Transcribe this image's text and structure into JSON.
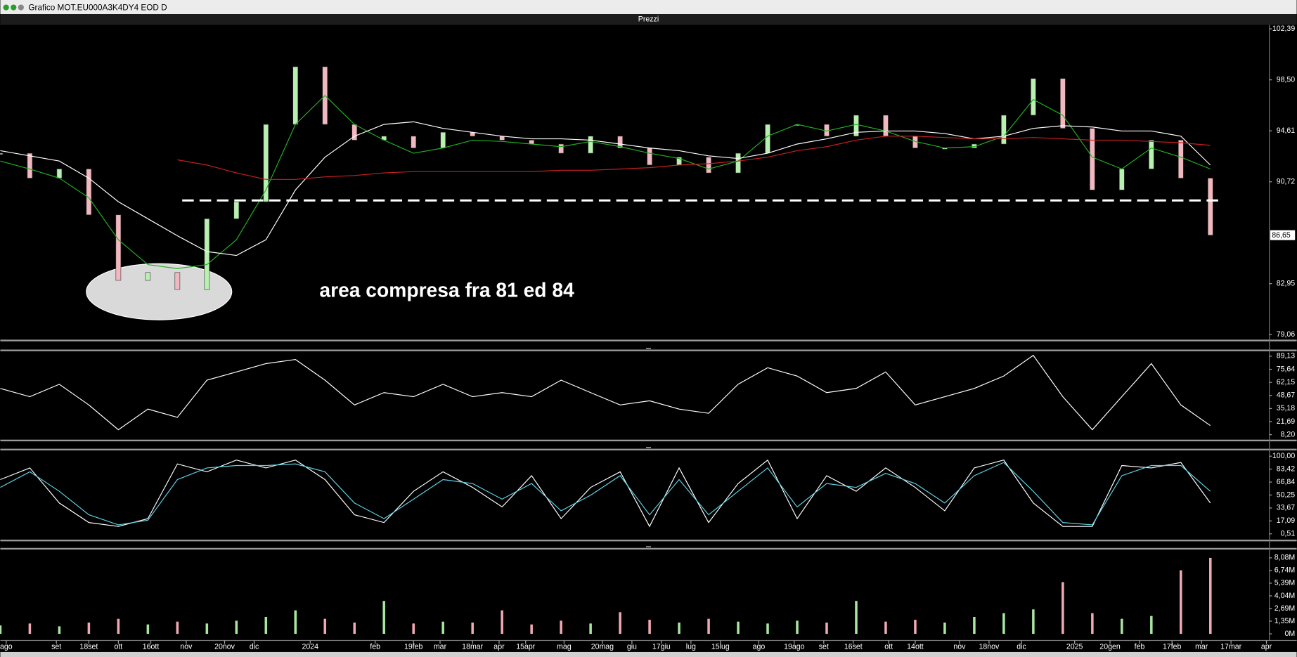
{
  "window": {
    "title": "Grafico MOT.EU000A3K4DY4 EOD D",
    "panel_label": "Prezzi"
  },
  "chart_data": [
    {
      "type": "candlestick",
      "xlim": [
        0,
        43
      ],
      "ylim": [
        78.74,
        102.7
      ],
      "yticks": [
        {
          "value": 102.39,
          "label": "102,39"
        },
        {
          "value": 98.5,
          "label": "98,50"
        },
        {
          "value": 94.61,
          "label": "94,61"
        },
        {
          "value": 90.72,
          "label": "90,72"
        },
        {
          "value": 82.95,
          "label": "82,95"
        },
        {
          "value": 79.06,
          "label": "79,06"
        }
      ],
      "values": [
        92.9,
        91.0,
        91.7,
        88.2,
        83.2,
        83.8,
        82.5,
        87.9,
        89.2,
        95.1,
        99.5,
        95.1,
        93.9,
        94.2,
        93.3,
        94.5,
        94.2,
        93.9,
        93.6,
        92.9,
        94.2,
        93.3,
        92.0,
        92.6,
        91.4,
        92.9,
        95.1,
        95.1,
        94.2,
        95.8,
        94.2,
        93.3,
        93.3,
        93.6,
        95.8,
        98.6,
        94.8,
        90.1,
        91.7,
        93.9,
        91.0,
        86.65
      ],
      "up_color": "#b8f0b0",
      "down_color": "#f2b8c0",
      "moving_averages": [
        {
          "color": "#22b022",
          "values": [
            92.3,
            91.7,
            91.0,
            89.5,
            86.3,
            84.4,
            84.1,
            84.4,
            86.3,
            90.1,
            95.1,
            97.3,
            95.1,
            93.9,
            92.9,
            93.3,
            93.9,
            93.8,
            93.6,
            93.4,
            93.8,
            93.4,
            92.9,
            92.5,
            91.7,
            92.3,
            94.2,
            95.1,
            94.6,
            95.1,
            94.6,
            93.8,
            93.3,
            93.4,
            94.2,
            97.0,
            95.8,
            92.6,
            91.7,
            93.3,
            92.6,
            91.7
          ]
        },
        {
          "color": "#ffffff",
          "values": [
            93.1,
            92.7,
            92.3,
            91.0,
            89.2,
            87.9,
            86.6,
            85.4,
            85.1,
            86.3,
            90.1,
            92.6,
            94.2,
            95.1,
            95.3,
            94.8,
            94.5,
            94.2,
            94.0,
            94.0,
            93.9,
            93.6,
            93.3,
            93.1,
            92.7,
            92.5,
            92.9,
            93.6,
            94.0,
            94.5,
            94.6,
            94.6,
            94.4,
            94.0,
            94.2,
            94.8,
            95.0,
            94.9,
            94.6,
            94.6,
            94.2,
            92.0
          ]
        },
        {
          "color": "#c82020",
          "values": [
            null,
            null,
            null,
            null,
            null,
            null,
            92.4,
            92.0,
            91.4,
            90.9,
            90.9,
            91.1,
            91.2,
            91.4,
            91.5,
            91.5,
            91.5,
            91.5,
            91.5,
            91.6,
            91.6,
            91.7,
            91.8,
            92.0,
            92.1,
            92.3,
            92.6,
            93.1,
            93.4,
            93.9,
            94.2,
            94.2,
            94.1,
            94.0,
            94.0,
            94.1,
            94.0,
            93.9,
            93.9,
            93.8,
            93.7,
            93.5
          ]
        }
      ],
      "reference_line": 89.3,
      "annotation": "area compresa fra 81 ed 84",
      "last_price": {
        "value": 86.65,
        "label": "86,65"
      }
    },
    {
      "type": "line",
      "xlim": [
        0,
        43
      ],
      "ylim": [
        3.94,
        94.24
      ],
      "yticks": [
        {
          "value": 89.13,
          "label": "89,13"
        },
        {
          "value": 75.64,
          "label": "75,64"
        },
        {
          "value": 62.15,
          "label": "62,15"
        },
        {
          "value": 48.67,
          "label": "48,67"
        },
        {
          "value": 35.18,
          "label": "35,18"
        },
        {
          "value": 21.69,
          "label": "21,69"
        },
        {
          "value": 8.2,
          "label": "8,20"
        }
      ],
      "series": [
        {
          "color": "#ffffff",
          "values": [
            55.9,
            47.4,
            60.2,
            38.9,
            13.3,
            34.6,
            26.1,
            64.4,
            72.9,
            81.5,
            85.7,
            64.4,
            38.9,
            51.6,
            47.4,
            60.2,
            47.4,
            51.6,
            47.4,
            64.4,
            51.6,
            38.9,
            43.1,
            34.6,
            30.3,
            60.2,
            77.2,
            68.7,
            51.6,
            55.9,
            72.9,
            38.9,
            47.4,
            55.9,
            68.7,
            90.0,
            47.4,
            13.3,
            47.4,
            81.5,
            38.9,
            17.6
          ]
        }
      ]
    },
    {
      "type": "line",
      "xlim": [
        0,
        43
      ],
      "ylim": [
        -5.84,
        107.4
      ],
      "yticks": [
        {
          "value": 100,
          "label": "100,00"
        },
        {
          "value": 83.42,
          "label": "83,42"
        },
        {
          "value": 66.84,
          "label": "66,84"
        },
        {
          "value": 50.25,
          "label": "50,25"
        },
        {
          "value": 33.67,
          "label": "33,67"
        },
        {
          "value": 17.09,
          "label": "17,09"
        },
        {
          "value": 0.51,
          "label": "0,51"
        }
      ],
      "series": [
        {
          "color": "#ffffff",
          "values": [
            70,
            85,
            40,
            15,
            10,
            20,
            90,
            80,
            95,
            85,
            95,
            70,
            25,
            15,
            55,
            80,
            60,
            35,
            75,
            20,
            60,
            80,
            10,
            85,
            15,
            65,
            95,
            20,
            75,
            55,
            85,
            60,
            30,
            85,
            95,
            40,
            10,
            10,
            88,
            85,
            92,
            40
          ]
        },
        {
          "color": "#5fd3e6",
          "values": [
            60,
            80,
            55,
            25,
            12,
            18,
            70,
            85,
            88,
            88,
            90,
            80,
            40,
            20,
            45,
            70,
            65,
            45,
            65,
            30,
            50,
            75,
            25,
            70,
            25,
            55,
            85,
            35,
            65,
            60,
            78,
            65,
            40,
            75,
            92,
            55,
            15,
            12,
            75,
            88,
            88,
            55
          ]
        }
      ]
    },
    {
      "type": "bar",
      "xlim": [
        0,
        43
      ],
      "ylim": [
        -0.44,
        8.96
      ],
      "yticks": [
        {
          "value": 8.08,
          "label": "8,08M"
        },
        {
          "value": 6.74,
          "label": "6,74M"
        },
        {
          "value": 5.39,
          "label": "5,39M"
        },
        {
          "value": 4.04,
          "label": "4,04M"
        },
        {
          "value": 2.69,
          "label": "2,69M"
        },
        {
          "value": 1.35,
          "label": "1,35M"
        },
        {
          "value": 0,
          "label": "0M"
        }
      ],
      "values": [
        0.9,
        1.1,
        0.8,
        1.2,
        1.6,
        1.0,
        1.3,
        1.1,
        1.4,
        1.8,
        2.5,
        1.6,
        1.2,
        3.5,
        1.1,
        1.3,
        1.2,
        2.5,
        1.0,
        1.4,
        1.1,
        2.3,
        1.5,
        1.2,
        1.6,
        1.3,
        1.1,
        1.4,
        1.2,
        3.5,
        1.3,
        1.5,
        1.2,
        1.8,
        2.2,
        2.6,
        5.5,
        2.2,
        1.6,
        1.9,
        6.76,
        8.08
      ],
      "up_color": "#a8e6a0",
      "down_color": "#f0a8b4",
      "xticks": [
        {
          "value": 0.2,
          "label": "ago"
        },
        {
          "value": 1.9,
          "label": "set"
        },
        {
          "value": 3.0,
          "label": "18set"
        },
        {
          "value": 4.0,
          "label": "ott"
        },
        {
          "value": 5.1,
          "label": "16ott"
        },
        {
          "value": 6.3,
          "label": "nov"
        },
        {
          "value": 7.6,
          "label": "20nov"
        },
        {
          "value": 8.6,
          "label": "dic"
        },
        {
          "value": 10.5,
          "label": "2024"
        },
        {
          "value": 12.7,
          "label": "feb"
        },
        {
          "value": 14.0,
          "label": "19feb"
        },
        {
          "value": 14.9,
          "label": "mar"
        },
        {
          "value": 16.0,
          "label": "18mar"
        },
        {
          "value": 16.9,
          "label": "apr"
        },
        {
          "value": 17.8,
          "label": "15apr"
        },
        {
          "value": 19.1,
          "label": "mag"
        },
        {
          "value": 20.4,
          "label": "20mag"
        },
        {
          "value": 21.4,
          "label": "giu"
        },
        {
          "value": 22.4,
          "label": "17giu"
        },
        {
          "value": 23.4,
          "label": "lug"
        },
        {
          "value": 24.4,
          "label": "15lug"
        },
        {
          "value": 25.7,
          "label": "ago"
        },
        {
          "value": 26.9,
          "label": "19ago"
        },
        {
          "value": 27.9,
          "label": "set"
        },
        {
          "value": 28.9,
          "label": "16set"
        },
        {
          "value": 30.1,
          "label": "ott"
        },
        {
          "value": 31.0,
          "label": "14ott"
        },
        {
          "value": 32.5,
          "label": "nov"
        },
        {
          "value": 33.5,
          "label": "18nov"
        },
        {
          "value": 34.6,
          "label": "dic"
        },
        {
          "value": 36.4,
          "label": "2025"
        },
        {
          "value": 37.6,
          "label": "20gen"
        },
        {
          "value": 38.6,
          "label": "feb"
        },
        {
          "value": 39.7,
          "label": "17feb"
        },
        {
          "value": 40.7,
          "label": "mar"
        },
        {
          "value": 41.7,
          "label": "17mar"
        },
        {
          "value": 42.9,
          "label": "apr"
        }
      ]
    }
  ]
}
